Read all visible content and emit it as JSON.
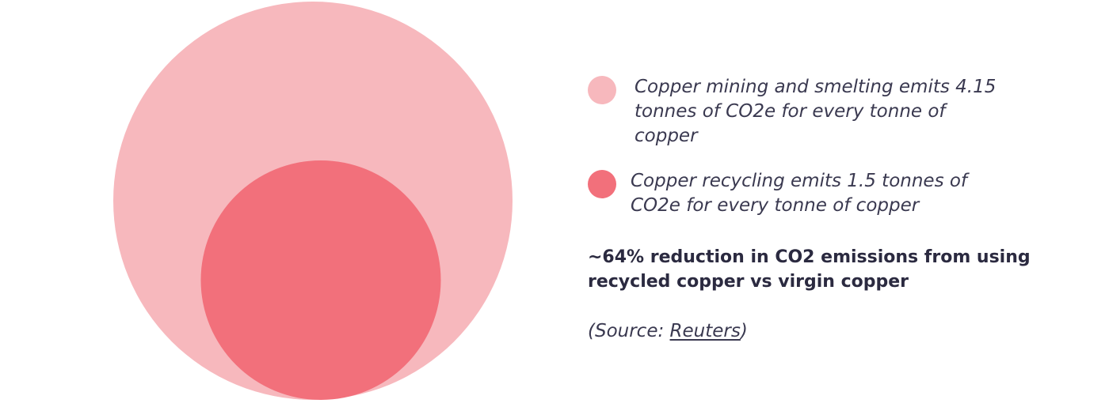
{
  "chart_data": {
    "type": "area",
    "title": "",
    "series": [
      {
        "label": "Copper mining and smelting emits 4.15 tonnes of CO2e for every tonne of copper",
        "value": 4.15,
        "unit": "tonnes of CO2e per tonne of copper",
        "color": "#f7b8bd"
      },
      {
        "label": "Copper recycling emits 1.5 tonnes of CO2e for every tonne of copper",
        "value": 1.5,
        "unit": "tonnes of CO2e per tonne of copper",
        "color": "#f2707b"
      }
    ],
    "legend_position": "right",
    "encoding": "nested circles, area proportional to value"
  },
  "conclusion": "~64% reduction in CO2 emissions from using recycled copper vs virgin copper",
  "source": {
    "prefix": "(Source: ",
    "link": "Reuters",
    "suffix": ")"
  }
}
